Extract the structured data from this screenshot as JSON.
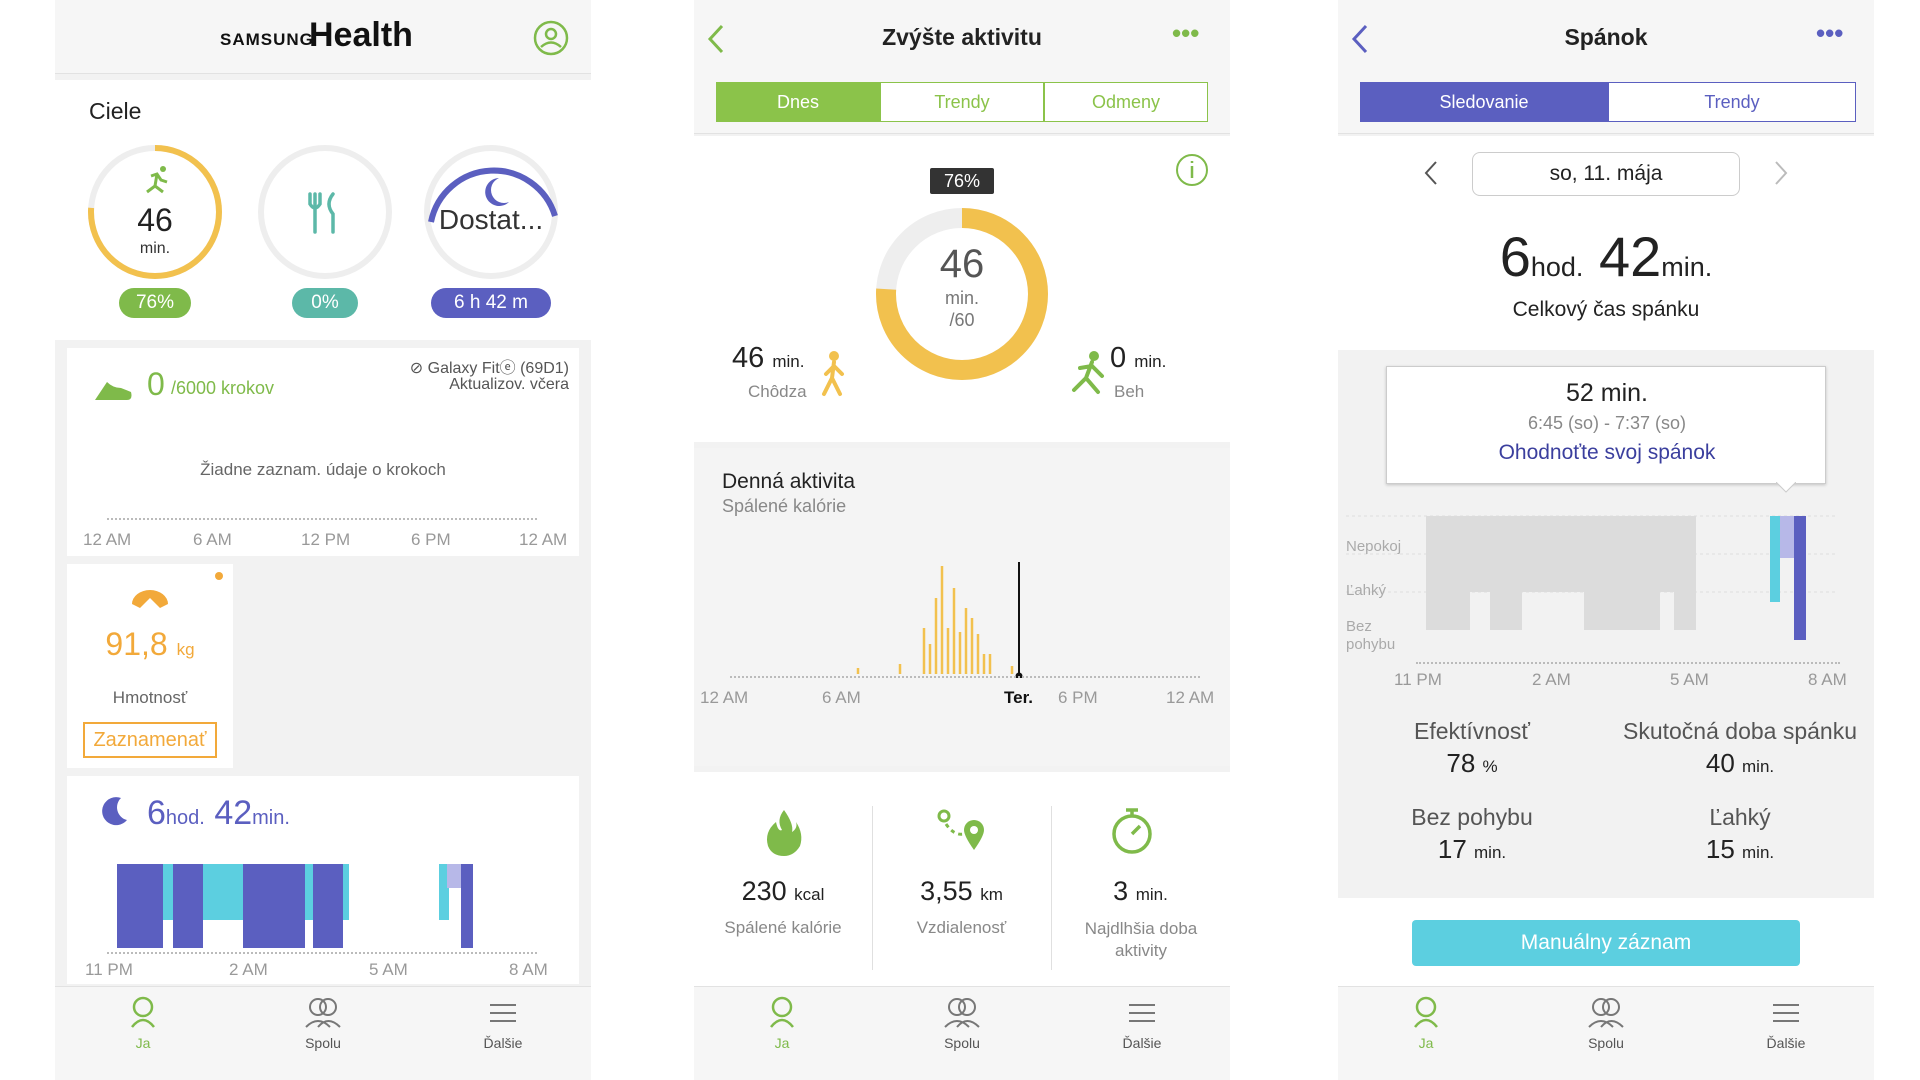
{
  "screen1": {
    "brand_small": "SAMSUNG",
    "brand_big": "Health",
    "goals_title": "Ciele",
    "goal_activity": {
      "value": "46",
      "unit": "min.",
      "pill": "76%",
      "progress": 0.76
    },
    "goal_food": {
      "pill": "0%",
      "progress": 0
    },
    "goal_sleep": {
      "value": "Dostat...",
      "pill": "6 h  42 m",
      "progress": 0.55
    },
    "steps": {
      "count": "0",
      "goal": "/6000 krokov",
      "device": "Galaxy Fitⓔ (69D1)",
      "updated": "Aktualizov. včera",
      "empty": "Žiadne zaznam. údaje o krokoch",
      "ticks": [
        "12 AM",
        "6 AM",
        "12 PM",
        "6 PM",
        "12 AM"
      ]
    },
    "weight": {
      "value": "91,8",
      "unit": "kg",
      "label": "Hmotnosť",
      "button": "Zaznamenať"
    },
    "sleep": {
      "hours": "6",
      "hours_unit": "hod.",
      "mins": "42",
      "mins_unit": "min.",
      "ticks": [
        "11 PM",
        "2 AM",
        "5 AM",
        "8 AM"
      ]
    },
    "tabs": [
      "Ja",
      "Spolu",
      "Ďalšie"
    ]
  },
  "screen2": {
    "title": "Zvýšte aktivitu",
    "segments": [
      "Dnes",
      "Trendy",
      "Odmeny"
    ],
    "badge": "76%",
    "ring": {
      "value": "46",
      "unit": "min.",
      "goal": "/60",
      "progress": 0.76
    },
    "walk": {
      "value": "46",
      "unit": "min.",
      "label": "Chôdza"
    },
    "run": {
      "value": "0",
      "unit": "min.",
      "label": "Beh"
    },
    "daily_title": "Denná aktivita",
    "daily_sub": "Spálené kalórie",
    "chart_ticks": [
      "12 AM",
      "6 AM",
      "Ter.",
      "6 PM",
      "12 AM"
    ],
    "stats": [
      {
        "value": "230",
        "unit": "kcal",
        "label": "Spálené kalórie"
      },
      {
        "value": "3,55",
        "unit": "km",
        "label": "Vzdialenosť"
      },
      {
        "value": "3",
        "unit": "min.",
        "label": "Najdlhšia doba aktivity"
      }
    ],
    "tabs": [
      "Ja",
      "Spolu",
      "Ďalšie"
    ]
  },
  "screen3": {
    "title": "Spánok",
    "segments": [
      "Sledovanie",
      "Trendy"
    ],
    "date": "so, 11. mája",
    "total_h": "6",
    "total_h_unit": "hod.",
    "total_m": "42",
    "total_m_unit": "min.",
    "total_label": "Celkový čas spánku",
    "tooltip": {
      "duration": "52 min.",
      "range": "6:45 (so) - 7:37 (so)",
      "link": "Ohodnoťte svoj spánok"
    },
    "levels": [
      "Nepokoj",
      "Ľahký",
      "Bez pohybu"
    ],
    "ticks": [
      "11 PM",
      "2 AM",
      "5 AM",
      "8 AM"
    ],
    "stats": [
      {
        "label": "Efektívnosť",
        "value": "78",
        "unit": "%"
      },
      {
        "label": "Skutočná doba spánku",
        "value": "40",
        "unit": "min."
      },
      {
        "label": "Bez pohybu",
        "value": "17",
        "unit": "min."
      },
      {
        "label": "Ľahký",
        "value": "15",
        "unit": "min."
      }
    ],
    "button": "Manuálny záznam",
    "tabs": [
      "Ja",
      "Spolu",
      "Ďalšie"
    ]
  },
  "colors": {
    "green": "#7fba4a",
    "yellow": "#f2c14e",
    "indigo": "#5b5fc0",
    "cyan": "#5ccfe0",
    "teal": "#5cb8a8"
  }
}
